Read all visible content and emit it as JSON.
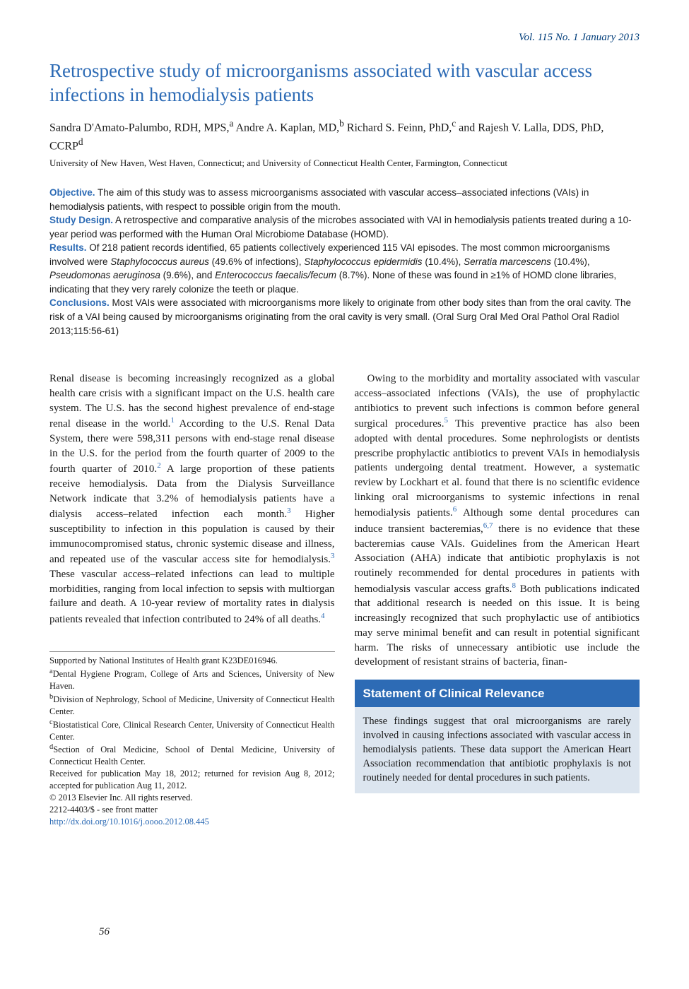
{
  "journal_header": "Vol. 115 No. 1 January 2013",
  "title": "Retrospective study of microorganisms associated with vascular access infections in hemodialysis patients",
  "authors_html": "Sandra D'Amato-Palumbo, RDH, MPS,<sup>a</sup> Andre A. Kaplan, MD,<sup>b</sup> Richard S. Feinn, PhD,<sup>c</sup> and Rajesh V. Lalla, DDS, PhD, CCRP<sup>d</sup>",
  "affiliation_line": "University of New Haven, West Haven, Connecticut; and University of Connecticut Health Center, Farmington, Connecticut",
  "abstract": {
    "objective_label": "Objective.",
    "objective": " The aim of this study was to assess microorganisms associated with vascular access–associated infections (VAIs) in hemodialysis patients, with respect to possible origin from the mouth.",
    "design_label": "Study Design.",
    "design": " A retrospective and comparative analysis of the microbes associated with VAI in hemodialysis patients treated during a 10-year period was performed with the Human Oral Microbiome Database (HOMD).",
    "results_label": "Results.",
    "results_pre": " Of 218 patient records identified, 65 patients collectively experienced 115 VAI episodes. The most common microorganisms involved were ",
    "org1": "Staphylococcus aureus",
    "org1_pct": " (49.6% of infections), ",
    "org2": "Staphylococcus epidermidis",
    "org2_pct": " (10.4%), ",
    "org3": "Serratia marcescens",
    "org3_pct": " (10.4%), ",
    "org4": "Pseudomonas aeruginosa",
    "org4_pct": " (9.6%), and ",
    "org5": "Enterococcus faecalis/fecum",
    "org5_pct": " (8.7%). None of these was found in ≥1% of HOMD clone libraries, indicating that they very rarely colonize the teeth or plaque.",
    "conclusions_label": "Conclusions.",
    "conclusions": " Most VAIs were associated with microorganisms more likely to originate from other body sites than from the oral cavity. The risk of a VAI being caused by microorganisms originating from the oral cavity is very small. (Oral Surg Oral Med Oral Pathol Oral Radiol 2013;115:56-61)"
  },
  "body": {
    "left1": "Renal disease is becoming increasingly recognized as a global health care crisis with a significant impact on the U.S. health care system. The U.S. has the second highest prevalence of end-stage renal disease in the world.",
    "left1_ref": "1",
    "left2": " According to the U.S. Renal Data System, there were 598,311 persons with end-stage renal disease in the U.S. for the period from the fourth quarter of 2009 to the fourth quarter of 2010.",
    "left2_ref": "2",
    "left3": " A large proportion of these patients receive hemodialysis. Data from the Dialysis Surveillance Network indicate that 3.2% of hemodialysis patients have a dialysis access–related infection each month.",
    "left3_ref": "3",
    "left4": " Higher susceptibility to infection in this population is caused by their immunocompromised status, chronic systemic disease and illness, and repeated use of the vascular access site for hemodialysis.",
    "left4_ref": "3",
    "left5": " These vascular access–related infections can lead to multiple morbidities, ranging from local infection to sepsis with multiorgan failure and death. A 10-year review of mortality rates in dialysis patients revealed that infection contributed to 24% of all deaths.",
    "left5_ref": "4",
    "right1": "Owing to the morbidity and mortality associated with vascular access–associated infections (VAIs), the use of prophylactic antibiotics to prevent such infections is common before general surgical procedures.",
    "right1_ref": "5",
    "right2": " This preventive practice has also been adopted with dental procedures. Some nephrologists or dentists prescribe prophylactic antibiotics to prevent VAIs in hemodialysis patients undergoing dental treatment. However, a systematic review by Lockhart et al. found that there is no scientific evidence linking oral microorganisms to systemic infections in renal hemodialysis patients.",
    "right2_ref": "6",
    "right3": " Although some dental procedures can induce transient bacteremias,",
    "right3_ref": "6,7",
    "right4": " there is no evidence that these bacteremias cause VAIs. Guidelines from the American Heart Association (AHA) indicate that antibiotic prophylaxis is not routinely recommended for dental procedures in patients with hemodialysis vascular access grafts.",
    "right4_ref": "8",
    "right5": " Both publications indicated that additional research is needed on this issue. It is being increasingly recognized that such prophylactic use of antibiotics may serve minimal benefit and can result in potential significant harm. The risks of unnecessary antibiotic use include the development of resistant strains of bacteria, finan-"
  },
  "footnotes": {
    "f0": "Supported by National Institutes of Health grant K23DE016946.",
    "fa": "Dental Hygiene Program, College of Arts and Sciences, University of New Haven.",
    "fb": "Division of Nephrology, School of Medicine, University of Connecticut Health Center.",
    "fc": "Biostatistical Core, Clinical Research Center, University of Connecticut Health Center.",
    "fd": "Section of Oral Medicine, School of Dental Medicine, University of Connecticut Health Center.",
    "received": "Received for publication May 18, 2012; returned for revision Aug 8, 2012; accepted for publication Aug 11, 2012.",
    "copyright": "© 2013 Elsevier Inc. All rights reserved.",
    "issn": "2212-4403/$ - see front matter",
    "doi": "http://dx.doi.org/10.1016/j.oooo.2012.08.445"
  },
  "relevance": {
    "header": "Statement of Clinical Relevance",
    "body": "These findings suggest that oral microorganisms are rarely involved in causing infections associated with vascular access in hemodialysis patients. These data support the American Heart Association recommendation that antibiotic prophylaxis is not routinely needed for dental procedures in such patients."
  },
  "page_number": "56",
  "colors": {
    "link_blue": "#2d6bb5",
    "header_blue": "#003d7a",
    "box_bg": "#dce5ef"
  }
}
